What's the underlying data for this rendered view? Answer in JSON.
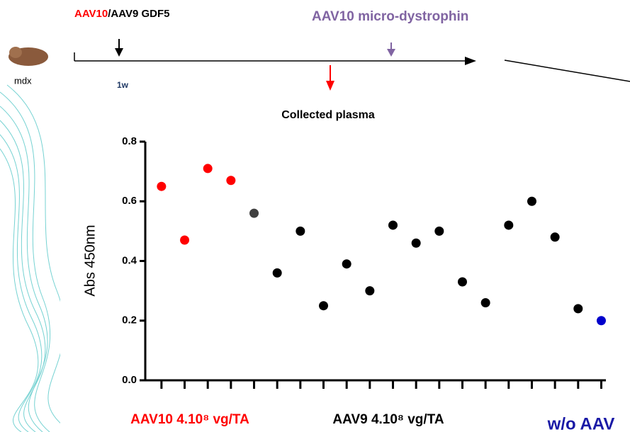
{
  "timeline": {
    "label_start_red": "AAV10",
    "label_start_rest": "/AAV9 GDF5",
    "label_treatment": "AAV10 micro-dystrophin",
    "mouse": "mdx",
    "time": "1w"
  },
  "chart_data": {
    "type": "scatter",
    "title": "Collected plasma",
    "ylabel": "Abs 450nm",
    "x": [
      1,
      2,
      3,
      4,
      5,
      6,
      7,
      8,
      9,
      10,
      11,
      12,
      13,
      14,
      15,
      16,
      17,
      18,
      19,
      20
    ],
    "values": [
      0.65,
      0.47,
      0.71,
      0.67,
      0.56,
      0.36,
      0.5,
      0.25,
      0.39,
      0.3,
      0.52,
      0.46,
      0.5,
      0.33,
      0.26,
      0.52,
      0.6,
      0.48,
      0.24,
      0.2
    ],
    "point_colors": [
      "#ff0000",
      "#ff0000",
      "#ff0000",
      "#ff0000",
      "#404040",
      "#000000",
      "#000000",
      "#000000",
      "#000000",
      "#000000",
      "#000000",
      "#000000",
      "#000000",
      "#000000",
      "#000000",
      "#000000",
      "#000000",
      "#000000",
      "#000000",
      "#0000cc"
    ],
    "xlim": [
      0.3,
      20.2
    ],
    "xticks": [
      1,
      2,
      3,
      4,
      5,
      6,
      7,
      8,
      9,
      10,
      11,
      12,
      13,
      14,
      15,
      16,
      17,
      18,
      19,
      20
    ],
    "ylim": [
      0,
      0.8
    ],
    "yticks": [
      {
        "value": 0,
        "label": "0.0"
      },
      0.2,
      0.4,
      0.6,
      0.8
    ],
    "groups": [
      {
        "label": "AAV10 4.10⁸ vg/TA",
        "color": "#ff0000"
      },
      {
        "label": "AAV9 4.10⁸ vg/TA",
        "color": "#000000"
      },
      {
        "label": "w/o AAV",
        "color": "#1a1aa6"
      }
    ]
  }
}
